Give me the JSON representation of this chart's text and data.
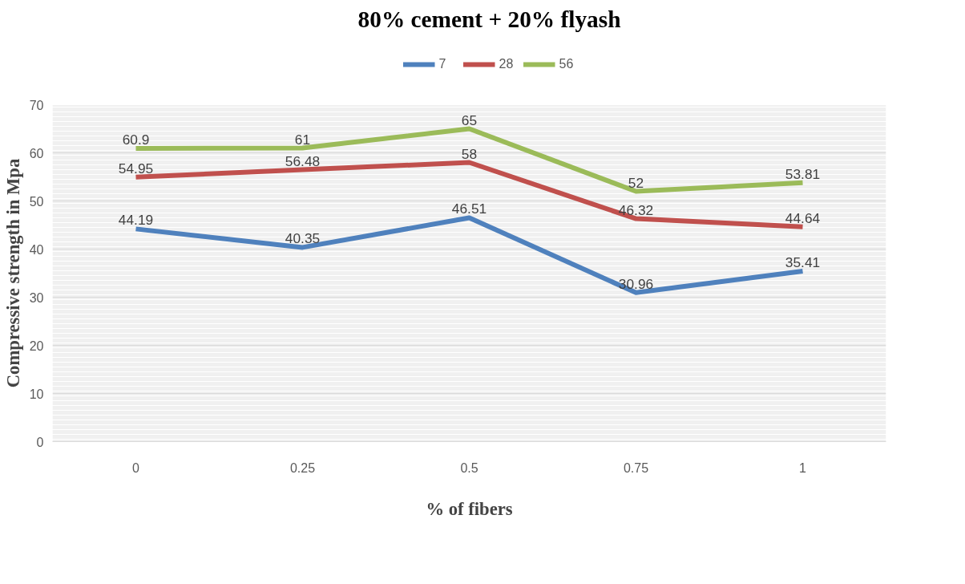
{
  "chart_data": {
    "type": "line",
    "title": "80% cement + 20% flyash",
    "xlabel": "% of fibers",
    "ylabel": "Compressive strength in Mpa",
    "categories": [
      "0",
      "0.25",
      "0.5",
      "0.75",
      "1"
    ],
    "series": [
      {
        "name": "7",
        "color": "#4f81bd",
        "values": [
          44.19,
          40.35,
          46.51,
          30.96,
          35.41
        ]
      },
      {
        "name": "28",
        "color": "#c0504d",
        "values": [
          54.95,
          56.48,
          58,
          46.32,
          44.64
        ]
      },
      {
        "name": "56",
        "color": "#9bbb59",
        "values": [
          60.9,
          61,
          65,
          52,
          53.81
        ]
      }
    ],
    "ylim": [
      0,
      70
    ],
    "yticks": [
      0,
      10,
      20,
      30,
      40,
      50,
      60,
      70
    ],
    "grid": "y",
    "legend": "top",
    "marker": "none",
    "line_style": "solid",
    "data_labels": true
  }
}
